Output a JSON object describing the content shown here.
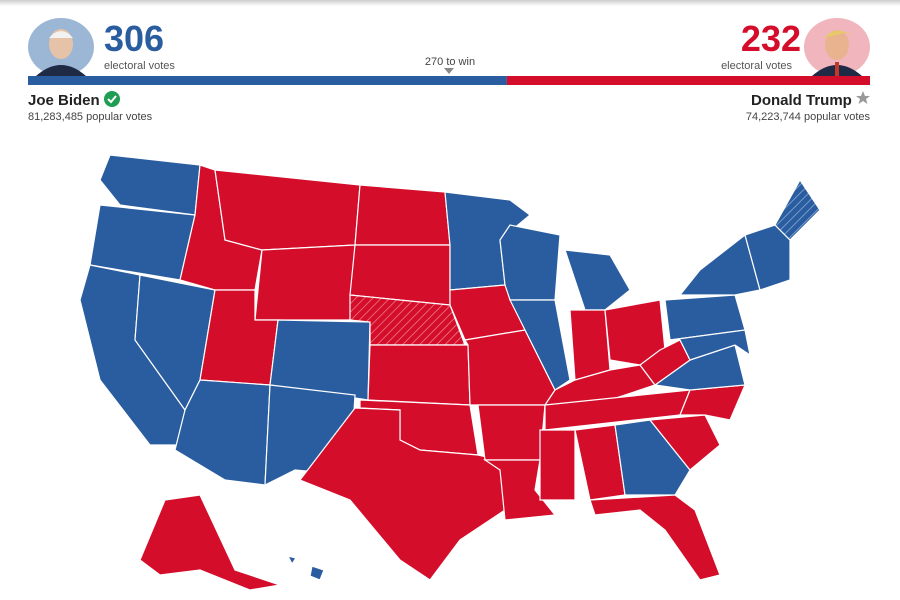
{
  "threshold_label": "270 to win",
  "candidates": [
    {
      "name": "Joe Biden",
      "electoral_votes": 306,
      "electoral_label": "electoral votes",
      "popular_votes": "81,283,485 popular votes",
      "color": "#2a5d9f"
    },
    {
      "name": "Donald Trump",
      "electoral_votes": 232,
      "electoral_label": "electoral votes",
      "popular_votes": "74,223,744 popular votes",
      "color": "#d40d2a"
    }
  ]
}
